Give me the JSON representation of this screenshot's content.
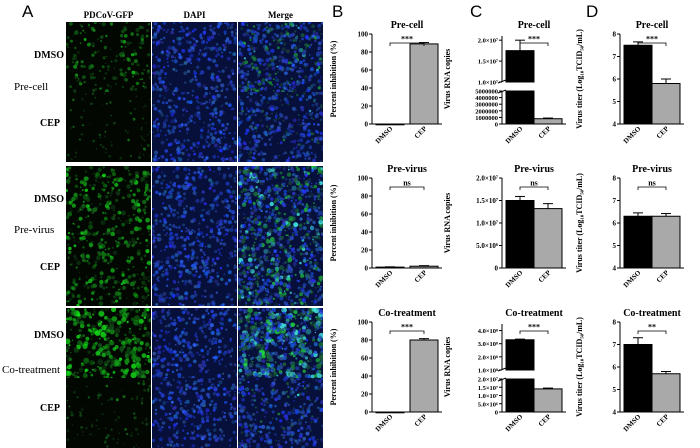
{
  "panels": {
    "a": {
      "letter": "A",
      "columns": [
        "PDCoV-GFP",
        "DAPI",
        "Merge"
      ],
      "groups": [
        {
          "name": "Pre-cell",
          "rows": [
            {
              "label": "DMSO",
              "gfp_intensity": 0.45
            },
            {
              "label": "CEP",
              "gfp_intensity": 0.05
            }
          ]
        },
        {
          "name": "Pre-virus",
          "rows": [
            {
              "label": "DMSO",
              "gfp_intensity": 0.7
            },
            {
              "label": "CEP",
              "gfp_intensity": 0.65
            }
          ]
        },
        {
          "name": "Co-treatment",
          "rows": [
            {
              "label": "DMSO",
              "gfp_intensity": 1.0
            },
            {
              "label": "CEP",
              "gfp_intensity": 0.12
            }
          ]
        }
      ],
      "colors": {
        "gfp": "#37c23a",
        "dapi": "#1d3fd6",
        "merge_cyan": "#3fe0e0"
      }
    },
    "b_letter": "B",
    "c_letter": "C",
    "d_letter": "D"
  },
  "chart_data": [
    {
      "id": "B1",
      "type": "bar",
      "title": "Pre-cell",
      "ylabel": "Percent inhibition (%)",
      "categories": [
        "DMSO",
        "CEP"
      ],
      "values": [
        0,
        89
      ],
      "errors": [
        0,
        1.5
      ],
      "ylim": [
        0,
        100
      ],
      "yticks": [
        0,
        20,
        40,
        60,
        80,
        100
      ],
      "significance": "***",
      "scale": "linear"
    },
    {
      "id": "B2",
      "type": "bar",
      "title": "Pre-virus",
      "ylabel": "Percent inhibition (%)",
      "categories": [
        "DMSO",
        "CEP"
      ],
      "values": [
        1,
        2
      ],
      "errors": [
        0.3,
        0.6
      ],
      "ylim": [
        0,
        100
      ],
      "yticks": [
        0,
        20,
        40,
        60,
        80,
        100
      ],
      "significance": "ns",
      "scale": "linear"
    },
    {
      "id": "B3",
      "type": "bar",
      "title": "Co-treatment",
      "ylabel": "Percent inhibition (%)",
      "categories": [
        "DMSO",
        "CEP"
      ],
      "values": [
        0,
        80
      ],
      "errors": [
        0,
        1.5
      ],
      "ylim": [
        0,
        100
      ],
      "yticks": [
        0,
        20,
        40,
        60,
        80,
        100
      ],
      "significance": "***",
      "scale": "linear"
    },
    {
      "id": "C1",
      "type": "bar",
      "title": "Pre-cell",
      "ylabel": "Virus RNA copies",
      "categories": [
        "DMSO",
        "CEP"
      ],
      "values": [
        17500000,
        800000
      ],
      "errors": [
        2500000,
        100000
      ],
      "scale": "broken",
      "lower_ylim": [
        0,
        5000000
      ],
      "lower_ticks": [
        "0",
        "1000000",
        "2000000",
        "3000000",
        "4000000",
        "5000000"
      ],
      "lower_tick_values": [
        0,
        1000000,
        2000000,
        3000000,
        4000000,
        5000000
      ],
      "upper_ylim": [
        10000000,
        21000000
      ],
      "upper_ticks": [
        "1.0×10⁷",
        "1.5×10⁷",
        "2.0×10⁷"
      ],
      "upper_tick_values": [
        10000000,
        15000000,
        20000000
      ],
      "significance": "***"
    },
    {
      "id": "C2",
      "type": "bar",
      "title": "Pre-virus",
      "ylabel": "Virus RNA copies",
      "categories": [
        "DMSO",
        "CEP"
      ],
      "values": [
        15000000,
        13200000
      ],
      "errors": [
        900000,
        1100000
      ],
      "ylim": [
        0,
        20000000
      ],
      "ytick_labels": [
        "0",
        "5.0×10⁶",
        "1.0×10⁷",
        "1.5×10⁷",
        "2.0×10⁷"
      ],
      "ytick_values": [
        0,
        5000000,
        10000000,
        15000000,
        20000000
      ],
      "significance": "ns",
      "scale": "linear"
    },
    {
      "id": "C3",
      "type": "bar",
      "title": "Co-treatment",
      "ylabel": "Virus RNA copies",
      "categories": [
        "DMSO",
        "CEP"
      ],
      "values": [
        330000000,
        14000000
      ],
      "errors": [
        5000000,
        500000
      ],
      "scale": "broken",
      "lower_ylim": [
        0,
        20000000
      ],
      "lower_ticks": [
        "0",
        "5.0×10⁶",
        "1.0×10⁷",
        "1.5×10⁷",
        "2.0×10⁷"
      ],
      "lower_tick_values": [
        0,
        5000000,
        10000000,
        15000000,
        20000000
      ],
      "upper_ylim": [
        100000000,
        450000000
      ],
      "upper_ticks": [
        "1.0×10⁸",
        "2.0×10⁸",
        "3.0×10⁸",
        "4.0×10⁸"
      ],
      "upper_tick_values": [
        100000000,
        200000000,
        300000000,
        400000000
      ],
      "significance": "***"
    },
    {
      "id": "D1",
      "type": "bar",
      "title": "Pre-cell",
      "ylabel": "Virus titer (Log₁₀TCID₅₀/mL)",
      "categories": [
        "DMSO",
        "CEP"
      ],
      "values": [
        7.5,
        5.8
      ],
      "errors": [
        0.15,
        0.2
      ],
      "ylim": [
        4,
        8
      ],
      "yticks": [
        4,
        5,
        6,
        7,
        8
      ],
      "significance": "***",
      "scale": "linear"
    },
    {
      "id": "D2",
      "type": "bar",
      "title": "Pre-virus",
      "ylabel": "Virus titer (Log₁₀TCID₅₀/mL)",
      "categories": [
        "DMSO",
        "CEP"
      ],
      "values": [
        6.3,
        6.3
      ],
      "errors": [
        0.15,
        0.12
      ],
      "ylim": [
        4,
        8
      ],
      "yticks": [
        4,
        5,
        6,
        7,
        8
      ],
      "significance": "ns",
      "scale": "linear"
    },
    {
      "id": "D3",
      "type": "bar",
      "title": "Co-treatment",
      "ylabel": "Virus titer (Log₁₀TCID₅₀/mL)",
      "categories": [
        "DMSO",
        "CEP"
      ],
      "values": [
        7.0,
        5.7
      ],
      "errors": [
        0.3,
        0.1
      ],
      "ylim": [
        4,
        8
      ],
      "yticks": [
        4,
        5,
        6,
        7,
        8
      ],
      "significance": "**",
      "scale": "linear"
    }
  ]
}
